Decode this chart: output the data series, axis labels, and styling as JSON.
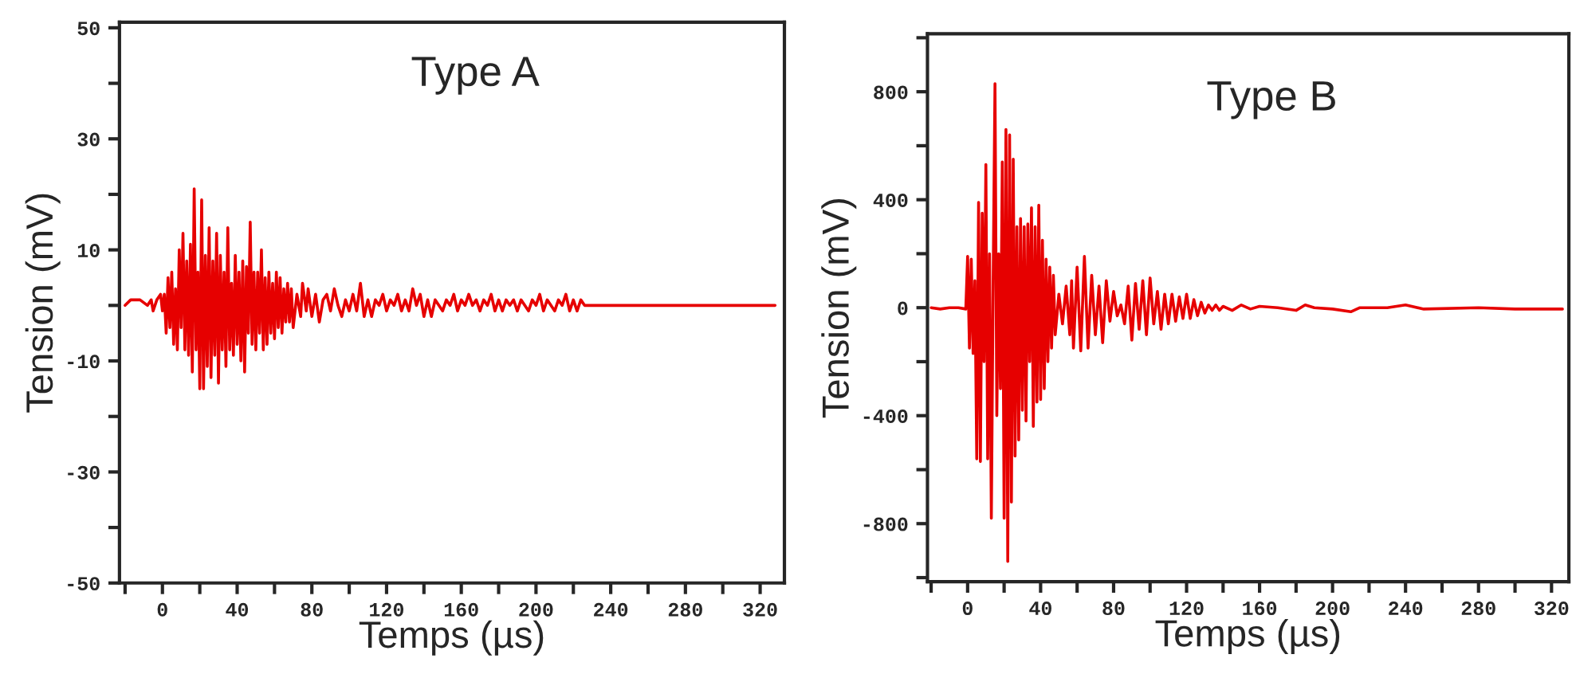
{
  "chart_data": [
    {
      "type": "line",
      "title": "Type A",
      "xlabel": "Temps (µs)",
      "ylabel": "Tension (mV)",
      "xlim": [
        -23,
        333
      ],
      "ylim": [
        -50,
        51
      ],
      "xticks": [
        {
          "value": -20,
          "label": null
        },
        0,
        {
          "value": 20,
          "label": null
        },
        40,
        {
          "value": 60,
          "label": null
        },
        80,
        {
          "value": 100,
          "label": null
        },
        120,
        {
          "value": 140,
          "label": null
        },
        160,
        {
          "value": 180,
          "label": null
        },
        200,
        {
          "value": 220,
          "label": null
        },
        240,
        {
          "value": 260,
          "label": null
        },
        280,
        {
          "value": 300,
          "label": null
        },
        320
      ],
      "yticks": [
        -50,
        {
          "value": -40,
          "label": null
        },
        -30,
        {
          "value": -20,
          "label": null
        },
        -10,
        {
          "value": 0,
          "label": null
        },
        10,
        {
          "value": 20,
          "label": null
        },
        30,
        {
          "value": 40,
          "label": null
        },
        50
      ],
      "grid": false,
      "legend": false,
      "marker": "none",
      "line_style": "solid",
      "series": [
        {
          "color": "#e60000",
          "x": [
            -20,
            -17,
            -12,
            -8,
            -6,
            -5,
            -3,
            -1,
            0,
            1,
            2,
            3,
            4,
            5,
            6,
            7,
            8,
            9,
            10,
            11,
            12,
            13,
            14,
            15,
            16,
            17,
            18,
            19,
            20,
            21,
            22,
            23,
            24,
            25,
            26,
            27,
            28,
            29,
            30,
            31,
            32,
            33,
            34,
            35,
            36,
            37,
            38,
            39,
            40,
            41,
            42,
            43,
            44,
            45,
            46,
            47,
            48,
            49,
            50,
            51,
            52,
            53,
            54,
            55,
            56,
            57,
            58,
            59,
            60,
            61,
            62,
            63,
            64,
            65,
            66,
            67,
            68,
            69,
            70,
            72,
            74,
            75,
            77,
            78,
            80,
            82,
            84,
            86,
            88,
            90,
            92,
            94,
            96,
            98,
            100,
            102,
            104,
            106,
            108,
            110,
            112,
            114,
            116,
            118,
            120,
            122,
            124,
            126,
            128,
            130,
            132,
            134,
            136,
            138,
            140,
            142,
            144,
            146,
            148,
            150,
            152,
            154,
            156,
            158,
            160,
            162,
            164,
            166,
            168,
            170,
            172,
            174,
            176,
            178,
            180,
            182,
            184,
            186,
            188,
            190,
            192,
            194,
            196,
            198,
            200,
            202,
            204,
            206,
            208,
            210,
            212,
            214,
            216,
            218,
            220,
            222,
            224,
            226,
            228,
            328
          ],
          "values": [
            0,
            1,
            1,
            0,
            1,
            -1,
            1,
            2,
            -1,
            2,
            -5,
            5,
            -4,
            6,
            -7,
            3,
            -8,
            10,
            -4,
            13,
            -8,
            8,
            -9,
            11,
            -12,
            21,
            -8,
            6,
            -15,
            19,
            -15,
            9,
            -11,
            14,
            -13,
            8,
            -9,
            13,
            -14,
            9,
            -8,
            6,
            -11,
            14,
            -8,
            4,
            -9,
            9,
            -7,
            6,
            -10,
            8,
            -12,
            7,
            -5,
            15,
            -7,
            6,
            -8,
            6,
            -5,
            10,
            -8,
            5,
            -7,
            6,
            -5,
            4,
            -6,
            6,
            -4,
            5,
            -5,
            3,
            -3,
            4,
            -3,
            3,
            -4,
            2,
            -2,
            4,
            -1,
            3,
            -2,
            2,
            -3,
            1,
            2,
            -1,
            3,
            0,
            -2,
            1,
            -1,
            2,
            -1,
            4,
            -2,
            1,
            -2,
            1,
            0,
            2,
            -1,
            1,
            0,
            2,
            -1,
            1,
            -1,
            3,
            0,
            2,
            -2,
            1,
            -2,
            1,
            0,
            -1,
            1,
            0,
            2,
            -1,
            1,
            0,
            2,
            0,
            1,
            -1,
            1,
            0,
            2,
            -1,
            1,
            -1,
            1,
            0,
            1,
            -1,
            1,
            0,
            -1,
            1,
            0,
            2,
            -1,
            1,
            0,
            -1,
            1,
            0,
            2,
            -1,
            1,
            -1,
            1,
            0,
            0,
            0
          ]
        }
      ]
    },
    {
      "type": "line",
      "title": "Type B",
      "xlabel": "Temps (µs)",
      "ylabel": "Tension (mV)",
      "xlim": [
        -22,
        329.5
      ],
      "ylim": [
        -1015,
        1015
      ],
      "xticks": [
        {
          "value": -20,
          "label": null
        },
        0,
        {
          "value": 20,
          "label": null
        },
        40,
        {
          "value": 60,
          "label": null
        },
        80,
        {
          "value": 100,
          "label": null
        },
        120,
        {
          "value": 140,
          "label": null
        },
        160,
        {
          "value": 180,
          "label": null
        },
        200,
        {
          "value": 220,
          "label": null
        },
        240,
        {
          "value": 260,
          "label": null
        },
        280,
        {
          "value": 300,
          "label": null
        },
        320
      ],
      "yticks": [
        {
          "value": -1000,
          "label": null
        },
        -800,
        {
          "value": -600,
          "label": null
        },
        -400,
        {
          "value": -200,
          "label": null
        },
        0,
        {
          "value": 200,
          "label": null
        },
        400,
        {
          "value": 600,
          "label": null
        },
        800,
        {
          "value": 1000,
          "label": null
        }
      ],
      "grid": false,
      "legend": false,
      "marker": "none",
      "line_style": "solid",
      "series": [
        {
          "color": "#e60000",
          "x": [
            -20,
            -15,
            -10,
            -5,
            -1,
            0,
            1,
            2,
            3,
            4,
            5,
            6,
            7,
            8,
            9,
            10,
            11,
            12,
            13,
            14,
            15,
            16,
            17,
            18,
            19,
            20,
            21,
            22,
            23,
            24,
            25,
            26,
            27,
            28,
            29,
            30,
            31,
            32,
            33,
            34,
            35,
            36,
            37,
            38,
            39,
            40,
            41,
            42,
            43,
            44,
            45,
            46,
            47,
            48,
            50,
            52,
            54,
            56,
            57,
            58,
            60,
            62,
            64,
            66,
            68,
            70,
            72,
            74,
            76,
            78,
            80,
            82,
            84,
            86,
            88,
            90,
            92,
            94,
            96,
            98,
            100,
            102,
            104,
            106,
            108,
            110,
            112,
            114,
            116,
            118,
            120,
            122,
            124,
            126,
            128,
            130,
            132,
            134,
            136,
            138,
            140,
            145,
            150,
            155,
            160,
            170,
            180,
            185,
            190,
            200,
            210,
            215,
            230,
            240,
            250,
            280,
            300,
            326
          ],
          "values": [
            0,
            -5,
            0,
            0,
            -5,
            190,
            -150,
            180,
            -170,
            100,
            -560,
            390,
            -570,
            350,
            -200,
            530,
            -560,
            200,
            -780,
            100,
            830,
            -400,
            200,
            -300,
            540,
            -780,
            660,
            -940,
            640,
            -720,
            550,
            -550,
            300,
            -490,
            330,
            -380,
            300,
            -420,
            310,
            -200,
            370,
            -440,
            300,
            -350,
            380,
            -340,
            250,
            -300,
            180,
            -200,
            150,
            -150,
            120,
            -100,
            50,
            -60,
            80,
            -100,
            100,
            -150,
            150,
            -160,
            190,
            -150,
            120,
            -100,
            80,
            -130,
            100,
            -50,
            60,
            -30,
            10,
            -60,
            80,
            -120,
            90,
            -80,
            100,
            -100,
            110,
            -60,
            60,
            -80,
            50,
            -60,
            50,
            -50,
            40,
            -40,
            50,
            -40,
            30,
            -30,
            20,
            -20,
            10,
            -10,
            10,
            -10,
            5,
            -10,
            10,
            -5,
            5,
            0,
            -10,
            10,
            0,
            -5,
            -15,
            0,
            0,
            10,
            -5,
            0,
            -5,
            -5
          ]
        }
      ]
    }
  ]
}
